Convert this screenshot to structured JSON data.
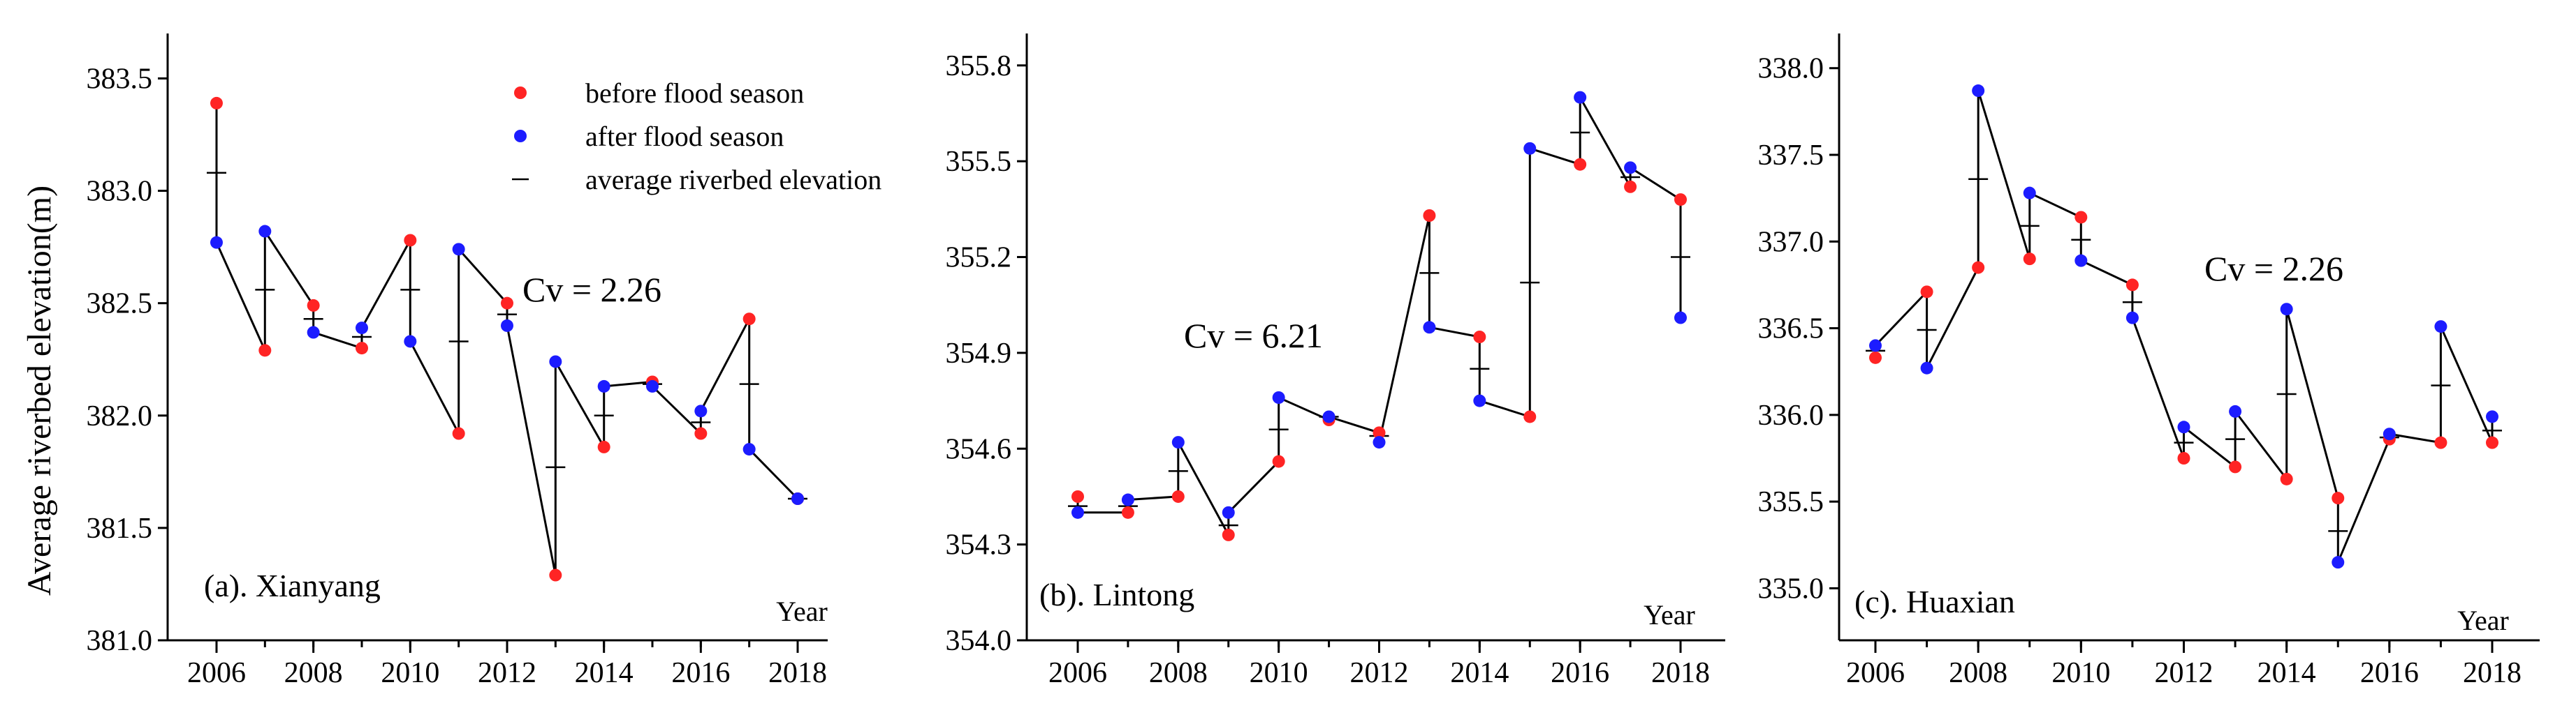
{
  "colors": {
    "before": "#ff2424",
    "after": "#1c1cff",
    "line": "#000000"
  },
  "legend": {
    "before": "before flood season",
    "after": "after flood season",
    "average": "average riverbed elevation"
  },
  "ylabel": "Average riverbed elevation(m)",
  "chart_data": [
    {
      "type": "line",
      "title": "(a). Xianyang",
      "xlabel": "Year",
      "ylabel": "Average riverbed elevation(m)",
      "annotation": "Cv = 2.26",
      "x": [
        2006,
        2007,
        2008,
        2009,
        2010,
        2011,
        2012,
        2013,
        2014,
        2015,
        2016,
        2017,
        2018
      ],
      "x_ticks": [
        "2006",
        "2008",
        "2010",
        "2012",
        "2014",
        "2016",
        "2018"
      ],
      "xlim": [
        2006,
        2018
      ],
      "ylim": [
        381.0,
        383.7
      ],
      "y_ticks": [
        "381.0",
        "381.5",
        "382.0",
        "382.5",
        "383.0",
        "383.5"
      ],
      "series": [
        {
          "name": "before flood season",
          "values": [
            383.39,
            382.29,
            382.49,
            382.3,
            382.78,
            381.92,
            382.5,
            381.29,
            381.86,
            382.15,
            381.92,
            382.43,
            381.63
          ]
        },
        {
          "name": "after flood season",
          "values": [
            382.77,
            382.82,
            382.37,
            382.39,
            382.33,
            382.74,
            382.4,
            382.24,
            382.13,
            382.13,
            382.02,
            381.85,
            381.63
          ]
        },
        {
          "name": "average riverbed elevation",
          "values": [
            383.08,
            382.56,
            382.43,
            382.35,
            382.56,
            382.33,
            382.45,
            381.77,
            382.0,
            382.14,
            381.97,
            382.14,
            381.63
          ]
        }
      ]
    },
    {
      "type": "line",
      "title": "(b). Lintong",
      "xlabel": "Year",
      "ylabel": "",
      "annotation": "Cv = 6.21",
      "x": [
        2006,
        2007,
        2008,
        2009,
        2010,
        2011,
        2012,
        2013,
        2014,
        2015,
        2016,
        2017,
        2018
      ],
      "x_ticks": [
        "2006",
        "2008",
        "2010",
        "2012",
        "2014",
        "2016",
        "2018"
      ],
      "xlim": [
        2006,
        2018
      ],
      "ylim": [
        354.0,
        355.9
      ],
      "y_ticks": [
        "354.0",
        "354.3",
        "354.6",
        "354.9",
        "355.2",
        "355.5",
        "355.8"
      ],
      "series": [
        {
          "name": "before flood season",
          "values": [
            354.45,
            354.4,
            354.45,
            354.33,
            354.56,
            354.69,
            354.65,
            355.33,
            354.95,
            354.7,
            355.49,
            355.42,
            355.38
          ]
        },
        {
          "name": "after flood season",
          "values": [
            354.4,
            354.44,
            354.62,
            354.4,
            354.76,
            354.7,
            354.62,
            354.98,
            354.75,
            355.54,
            355.7,
            355.48,
            355.01
          ]
        },
        {
          "name": "average riverbed elevation",
          "values": [
            354.42,
            354.42,
            354.53,
            354.36,
            354.66,
            354.7,
            354.64,
            355.15,
            354.85,
            355.12,
            355.59,
            355.45,
            355.2
          ]
        }
      ]
    },
    {
      "type": "line",
      "title": "(c). Huaxian",
      "xlabel": "Year",
      "ylabel": "",
      "annotation": "Cv = 2.26",
      "x": [
        2006,
        2007,
        2008,
        2009,
        2010,
        2011,
        2012,
        2013,
        2014,
        2015,
        2016,
        2017,
        2018
      ],
      "x_ticks": [
        "2006",
        "2008",
        "2010",
        "2012",
        "2014",
        "2016",
        "2018"
      ],
      "xlim": [
        2006,
        2018
      ],
      "ylim": [
        334.7,
        338.2
      ],
      "y_ticks": [
        "335.0",
        "335.5",
        "336.0",
        "336.5",
        "337.0",
        "337.5",
        "338.0"
      ],
      "series": [
        {
          "name": "before flood season",
          "values": [
            336.33,
            336.71,
            336.85,
            336.9,
            337.14,
            336.75,
            335.75,
            335.7,
            335.63,
            335.52,
            335.86,
            335.84,
            335.84
          ]
        },
        {
          "name": "after flood season",
          "values": [
            336.4,
            336.27,
            337.87,
            337.28,
            336.89,
            336.56,
            335.93,
            336.02,
            336.61,
            335.15,
            335.89,
            336.51,
            335.99
          ]
        },
        {
          "name": "average riverbed elevation",
          "values": [
            336.37,
            336.49,
            337.36,
            337.09,
            337.01,
            336.65,
            335.84,
            335.86,
            336.12,
            335.33,
            335.87,
            336.17,
            335.91
          ]
        }
      ]
    }
  ]
}
